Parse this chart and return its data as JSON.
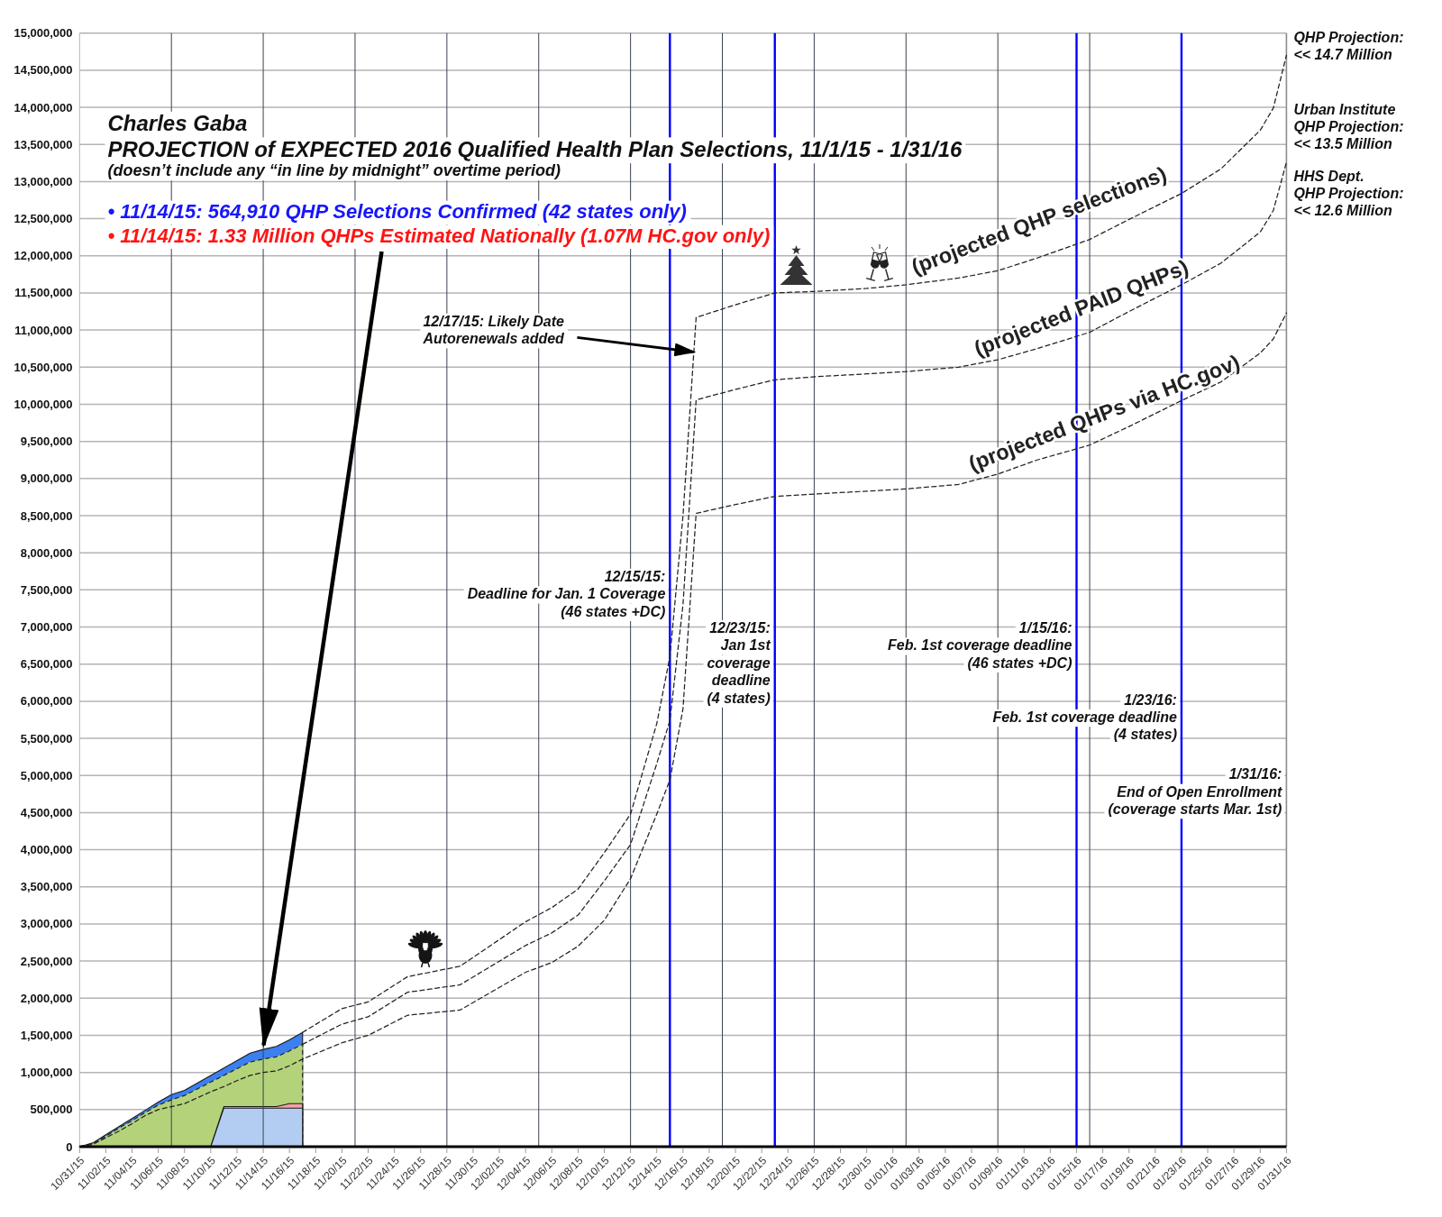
{
  "chart_data": {
    "type": "line",
    "title": "Charles Gaba\nPROJECTION of EXPECTED 2016 Qualified Health Plan Selections, 11/1/15 - 1/31/16",
    "subtitle": "(doesn’t include any “in line by midnight” overtime period)",
    "xlim": [
      "2015-10-31",
      "2016-01-31"
    ],
    "xticks": [
      {
        "value": "2015-10-31",
        "label": "10/31/15"
      },
      {
        "value": "2015-11-02",
        "label": "11/02/15"
      },
      {
        "value": "2015-11-04",
        "label": "11/04/15"
      },
      {
        "value": "2015-11-06",
        "label": "11/06/15"
      },
      {
        "value": "2015-11-08",
        "label": "11/08/15"
      },
      {
        "value": "2015-11-10",
        "label": "11/10/15"
      },
      {
        "value": "2015-11-12",
        "label": "11/12/15"
      },
      {
        "value": "2015-11-14",
        "label": "11/14/15"
      },
      {
        "value": "2015-11-16",
        "label": "11/16/15"
      },
      {
        "value": "2015-11-18",
        "label": "11/18/15"
      },
      {
        "value": "2015-11-20",
        "label": "11/20/15"
      },
      {
        "value": "2015-11-22",
        "label": "11/22/15"
      },
      {
        "value": "2015-11-24",
        "label": "11/24/15"
      },
      {
        "value": "2015-11-26",
        "label": "11/26/15"
      },
      {
        "value": "2015-11-28",
        "label": "11/28/15"
      },
      {
        "value": "2015-11-30",
        "label": "11/30/15"
      },
      {
        "value": "2015-12-02",
        "label": "12/02/15"
      },
      {
        "value": "2015-12-04",
        "label": "12/04/15"
      },
      {
        "value": "2015-12-06",
        "label": "12/06/15"
      },
      {
        "value": "2015-12-08",
        "label": "12/08/15"
      },
      {
        "value": "2015-12-10",
        "label": "12/10/15"
      },
      {
        "value": "2015-12-12",
        "label": "12/12/15"
      },
      {
        "value": "2015-12-14",
        "label": "12/14/15"
      },
      {
        "value": "2015-12-16",
        "label": "12/16/15"
      },
      {
        "value": "2015-12-18",
        "label": "12/18/15"
      },
      {
        "value": "2015-12-20",
        "label": "12/20/15"
      },
      {
        "value": "2015-12-22",
        "label": "12/22/15"
      },
      {
        "value": "2015-12-24",
        "label": "12/24/15"
      },
      {
        "value": "2015-12-26",
        "label": "12/26/15"
      },
      {
        "value": "2015-12-28",
        "label": "12/28/15"
      },
      {
        "value": "2015-12-30",
        "label": "12/30/15"
      },
      {
        "value": "2016-01-01",
        "label": "01/01/16"
      },
      {
        "value": "2016-01-03",
        "label": "01/03/16"
      },
      {
        "value": "2016-01-05",
        "label": "01/05/16"
      },
      {
        "value": "2016-01-07",
        "label": "01/07/16"
      },
      {
        "value": "2016-01-09",
        "label": "01/09/16"
      },
      {
        "value": "2016-01-11",
        "label": "01/11/16"
      },
      {
        "value": "2016-01-13",
        "label": "01/13/16"
      },
      {
        "value": "2016-01-15",
        "label": "01/15/16"
      },
      {
        "value": "2016-01-17",
        "label": "01/17/16"
      },
      {
        "value": "2016-01-19",
        "label": "01/19/16"
      },
      {
        "value": "2016-01-21",
        "label": "01/21/16"
      },
      {
        "value": "2016-01-23",
        "label": "01/23/16"
      },
      {
        "value": "2016-01-25",
        "label": "01/25/16"
      },
      {
        "value": "2016-01-27",
        "label": "01/27/16"
      },
      {
        "value": "2016-01-29",
        "label": "01/29/16"
      },
      {
        "value": "2016-01-31",
        "label": "01/31/16"
      }
    ],
    "ylim": [
      0,
      15000000
    ],
    "yticks": [
      0,
      {
        "value": 500000,
        "label": "500,000"
      },
      {
        "value": 1000000,
        "label": "1,000,000"
      },
      {
        "value": 1500000,
        "label": "1,500,000"
      },
      {
        "value": 2000000,
        "label": "2,000,000"
      },
      {
        "value": 2500000,
        "label": "2,500,000"
      },
      {
        "value": 3000000,
        "label": "3,000,000"
      },
      {
        "value": 3500000,
        "label": "3,500,000"
      },
      {
        "value": 4000000,
        "label": "4,000,000"
      },
      {
        "value": 4500000,
        "label": "4,500,000"
      },
      {
        "value": 5000000,
        "label": "5,000,000"
      },
      {
        "value": 5500000,
        "label": "5,500,000"
      },
      {
        "value": 6000000,
        "label": "6,000,000"
      },
      {
        "value": 6500000,
        "label": "6,500,000"
      },
      {
        "value": 7000000,
        "label": "7,000,000"
      },
      {
        "value": 7500000,
        "label": "7,500,000"
      },
      {
        "value": 8000000,
        "label": "8,000,000"
      },
      {
        "value": 8500000,
        "label": "8,500,000"
      },
      {
        "value": 9000000,
        "label": "9,000,000"
      },
      {
        "value": 9500000,
        "label": "9,500,000"
      },
      {
        "value": 10000000,
        "label": "10,000,000"
      },
      {
        "value": 10500000,
        "label": "10,500,000"
      },
      {
        "value": 11000000,
        "label": "11,000,000"
      },
      {
        "value": 11500000,
        "label": "11,500,000"
      },
      {
        "value": 12000000,
        "label": "12,000,000"
      },
      {
        "value": 12500000,
        "label": "12,500,000"
      },
      {
        "value": 13000000,
        "label": "13,000,000"
      },
      {
        "value": 13500000,
        "label": "13,500,000"
      },
      {
        "value": 14000000,
        "label": "14,000,000"
      },
      {
        "value": 14500000,
        "label": "14,500,000"
      },
      {
        "value": 15000000,
        "label": "15,000,000"
      }
    ],
    "grid": "y",
    "series": [
      {
        "type": "area",
        "color": "#3c7ff0",
        "x": [
          "2015-10-31",
          "2015-11-01",
          "2015-11-02",
          "2015-11-03",
          "2015-11-04",
          "2015-11-05",
          "2015-11-06",
          "2015-11-07",
          "2015-11-08",
          "2015-11-09",
          "2015-11-10",
          "2015-11-11",
          "2015-11-12",
          "2015-11-13",
          "2015-11-14",
          "2015-11-15",
          "2015-11-16",
          "2015-11-17"
        ],
        "values": [
          0,
          50000,
          160000,
          270000,
          380000,
          490000,
          600000,
          700000,
          760000,
          860000,
          960000,
          1060000,
          1160000,
          1260000,
          1310000,
          1350000,
          1440000,
          1540000
        ]
      },
      {
        "type": "area",
        "color": "#b4d27a",
        "line_style": "dashed",
        "x": [
          "2015-10-31",
          "2015-11-01",
          "2015-11-02",
          "2015-11-03",
          "2015-11-04",
          "2015-11-05",
          "2015-11-06",
          "2015-11-07",
          "2015-11-08",
          "2015-11-09",
          "2015-11-10",
          "2015-11-11",
          "2015-11-12",
          "2015-11-13",
          "2015-11-14",
          "2015-11-15",
          "2015-11-16",
          "2015-11-17"
        ],
        "values": [
          0,
          40000,
          140000,
          250000,
          350000,
          460000,
          560000,
          630000,
          690000,
          780000,
          870000,
          960000,
          1050000,
          1140000,
          1180000,
          1210000,
          1290000,
          1380000
        ]
      },
      {
        "type": "area",
        "color": "#f2a3a3",
        "x": [
          "2015-11-10",
          "2015-11-11",
          "2015-11-12",
          "2015-11-13",
          "2015-11-14",
          "2015-11-15",
          "2015-11-16",
          "2015-11-17"
        ],
        "values": [
          0,
          540000,
          540000,
          540000,
          540000,
          540000,
          580000,
          580000
        ]
      },
      {
        "type": "area",
        "color": "#b3cdf2",
        "x": [
          "2015-11-10",
          "2015-11-11",
          "2015-11-12",
          "2015-11-13",
          "2015-11-14",
          "2015-11-15",
          "2015-11-16",
          "2015-11-17"
        ],
        "values": [
          0,
          520000,
          520000,
          520000,
          520000,
          520000,
          520000,
          520000
        ]
      },
      {
        "type": "line",
        "name": "(projected QHP selections)",
        "color": "#222222",
        "line_style": "dashed",
        "x": [
          "2015-11-17",
          "2015-11-20",
          "2015-11-22",
          "2015-11-25",
          "2015-11-29",
          "2015-12-04",
          "2015-12-06",
          "2015-12-08",
          "2015-12-10",
          "2015-12-12",
          "2015-12-14",
          "2015-12-15",
          "2015-12-16",
          "2015-12-17",
          "2015-12-20",
          "2015-12-23",
          "2015-12-26",
          "2015-12-30",
          "2016-01-02",
          "2016-01-06",
          "2016-01-09",
          "2016-01-12",
          "2016-01-16",
          "2016-01-19",
          "2016-01-23",
          "2016-01-26",
          "2016-01-29",
          "2016-01-30",
          "2016-01-31"
        ],
        "values": [
          1540000,
          1860000,
          1950000,
          2290000,
          2430000,
          3030000,
          3220000,
          3470000,
          3960000,
          4480000,
          5700000,
          6600000,
          8500000,
          11170000,
          11340000,
          11500000,
          11520000,
          11560000,
          11610000,
          11700000,
          11800000,
          11970000,
          12220000,
          12490000,
          12840000,
          13170000,
          13690000,
          13990000,
          14700000
        ]
      },
      {
        "type": "line",
        "name": "(projected PAID QHPs)",
        "color": "#222222",
        "line_style": "dashed",
        "x": [
          "2015-11-17",
          "2015-11-20",
          "2015-11-22",
          "2015-11-25",
          "2015-11-29",
          "2015-12-04",
          "2015-12-06",
          "2015-12-08",
          "2015-12-10",
          "2015-12-12",
          "2015-12-14",
          "2015-12-15",
          "2015-12-16",
          "2015-12-17",
          "2015-12-20",
          "2015-12-23",
          "2015-12-26",
          "2015-12-30",
          "2016-01-02",
          "2016-01-06",
          "2016-01-09",
          "2016-01-12",
          "2016-01-16",
          "2016-01-19",
          "2016-01-23",
          "2016-01-26",
          "2016-01-29",
          "2016-01-30",
          "2016-01-31"
        ],
        "values": [
          1380000,
          1650000,
          1750000,
          2080000,
          2180000,
          2710000,
          2880000,
          3120000,
          3580000,
          4070000,
          5160000,
          5740000,
          7300000,
          10060000,
          10200000,
          10330000,
          10370000,
          10410000,
          10440000,
          10500000,
          10600000,
          10750000,
          10970000,
          11250000,
          11610000,
          11900000,
          12320000,
          12610000,
          13260000
        ]
      },
      {
        "type": "line",
        "name": "(projected QHPs via HC.gov)",
        "color": "#222222",
        "line_style": "dashed",
        "x": [
          "2015-10-31",
          "2015-11-01",
          "2015-11-02",
          "2015-11-03",
          "2015-11-04",
          "2015-11-05",
          "2015-11-06",
          "2015-11-07",
          "2015-11-08",
          "2015-11-09",
          "2015-11-10",
          "2015-11-11",
          "2015-11-12",
          "2015-11-13",
          "2015-11-14",
          "2015-11-15",
          "2015-11-16",
          "2015-11-17",
          "2015-11-20",
          "2015-11-22",
          "2015-11-25",
          "2015-11-29",
          "2015-12-04",
          "2015-12-06",
          "2015-12-08",
          "2015-12-10",
          "2015-12-12",
          "2015-12-14",
          "2015-12-15",
          "2015-12-16",
          "2015-12-17",
          "2015-12-20",
          "2015-12-23",
          "2015-12-26",
          "2015-12-30",
          "2016-01-02",
          "2016-01-06",
          "2016-01-09",
          "2016-01-12",
          "2016-01-16",
          "2016-01-19",
          "2016-01-23",
          "2016-01-26",
          "2016-01-29",
          "2016-01-30",
          "2016-01-31"
        ],
        "values": [
          0,
          30000,
          120000,
          210000,
          310000,
          420000,
          500000,
          540000,
          580000,
          660000,
          740000,
          810000,
          890000,
          960000,
          1000000,
          1020000,
          1090000,
          1180000,
          1400000,
          1500000,
          1770000,
          1840000,
          2350000,
          2480000,
          2700000,
          3050000,
          3610000,
          4480000,
          4940000,
          5900000,
          8530000,
          8650000,
          8760000,
          8790000,
          8830000,
          8860000,
          8920000,
          9060000,
          9250000,
          9450000,
          9700000,
          10050000,
          10300000,
          10690000,
          10880000,
          11230000
        ]
      }
    ],
    "ref_lines": [
      {
        "axis": "x",
        "value": "2015-12-15",
        "label": "12/15/15:\nDeadline for Jan. 1 Coverage\n(46 states +DC)",
        "color": "#0000ff"
      },
      {
        "axis": "x",
        "value": "2015-12-23",
        "label": "12/23/15:\nJan 1st\ncoverage\ndeadline\n(4 states)",
        "color": "#0000ff"
      },
      {
        "axis": "x",
        "value": "2016-01-15",
        "label": "1/15/16:\nFeb. 1st coverage deadline\n(46 states +DC)",
        "color": "#0000ff"
      },
      {
        "axis": "x",
        "value": "2016-01-23",
        "label": "1/23/16:\nFeb. 1st coverage deadline\n(4 states)",
        "color": "#0000ff"
      },
      {
        "axis": "x",
        "value": "2016-01-31",
        "label": "1/31/16:\nEnd of Open Enrollment\n(coverage starts Mar. 1st)",
        "color": "#8c8c8c"
      },
      {
        "axis": "x",
        "value": "2015-11-07",
        "color": "#3a4352"
      },
      {
        "axis": "x",
        "value": "2015-11-14",
        "color": "#3a4352"
      },
      {
        "axis": "x",
        "value": "2015-11-21",
        "color": "#3a4352"
      },
      {
        "axis": "x",
        "value": "2015-11-28",
        "color": "#3a4352"
      },
      {
        "axis": "x",
        "value": "2015-12-05",
        "color": "#3a4352"
      },
      {
        "axis": "x",
        "value": "2015-12-12",
        "color": "#3a4352"
      },
      {
        "axis": "x",
        "value": "2015-12-19",
        "color": "#3a4352"
      },
      {
        "axis": "x",
        "value": "2015-12-26",
        "color": "#3a4352"
      },
      {
        "axis": "x",
        "value": "2016-01-02",
        "color": "#3a4352"
      },
      {
        "axis": "x",
        "value": "2016-01-09",
        "color": "#3a4352"
      },
      {
        "axis": "x",
        "value": "2016-01-16",
        "color": "#3a4352"
      }
    ],
    "annotations": [
      "• 11/14/15: 564,910 QHP Selections Confirmed (42 states only)",
      {
        "text": "• 11/14/15: 1.33 Million QHPs Estimated Nationally (1.07M HC.gov only)",
        "x": "2015-11-14",
        "y": 1330000
      },
      {
        "text": "12/17/15: Likely Date\nAutorenewals added",
        "x": "2015-12-17",
        "y": 10700000
      },
      {
        "text": "QHP Projection:\n<< 14.7 Million",
        "x": "2016-01-31",
        "y": 14700000
      },
      {
        "text": "Urban Institute\nQHP Projection:\n<< 13.5 Million",
        "x": "2016-01-31",
        "y": 13500000
      },
      {
        "text": "HHS Dept.\nQHP Projection:\n<< 12.6 Million",
        "x": "2016-01-31",
        "y": 12600000
      }
    ]
  }
}
